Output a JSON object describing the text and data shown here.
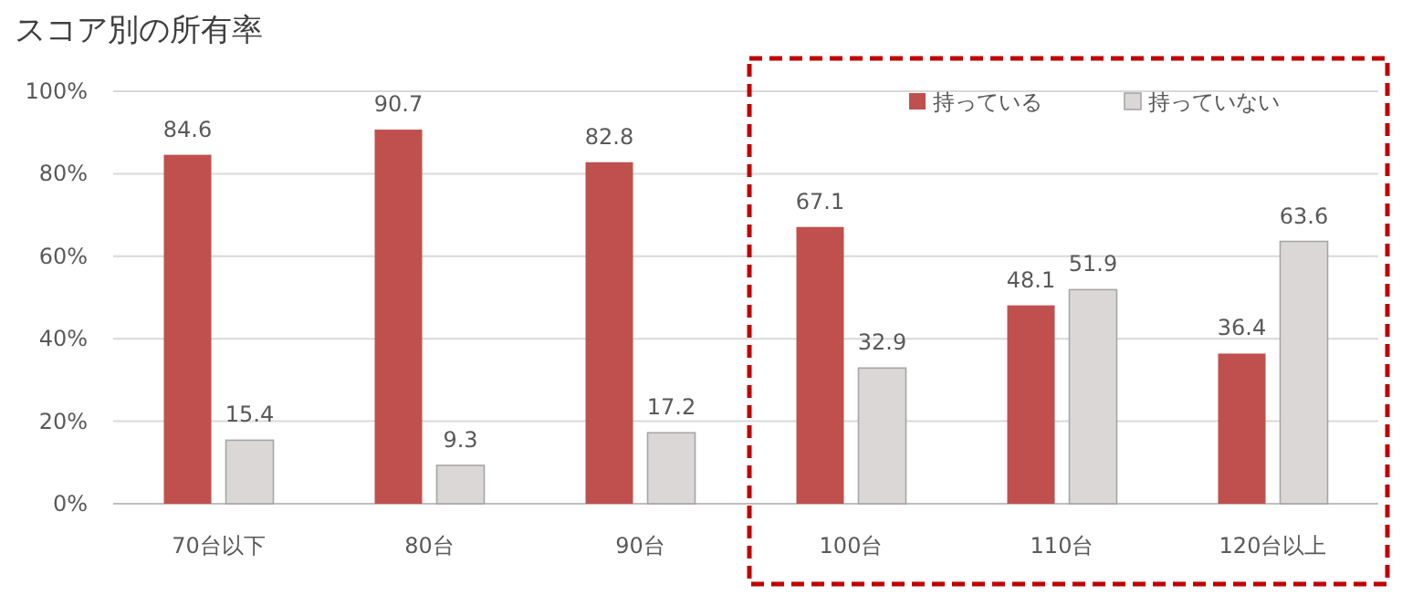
{
  "chart_data": {
    "type": "bar",
    "title": "スコア別の所有率",
    "categories": [
      "70台以下",
      "80台",
      "90台",
      "100台",
      "110台",
      "120台以上"
    ],
    "series": [
      {
        "name": "持っている",
        "color": "#c0504d",
        "values": [
          84.6,
          90.7,
          82.8,
          67.1,
          48.1,
          36.4
        ]
      },
      {
        "name": "持っていない",
        "color": "#dbd7d7",
        "values": [
          15.4,
          9.3,
          17.2,
          32.9,
          51.9,
          63.6
        ]
      }
    ],
    "ylim": [
      0,
      100
    ],
    "yticks": [
      {
        "value": 0,
        "label": "0%"
      },
      {
        "value": 20,
        "label": "20%"
      },
      {
        "value": 40,
        "label": "40%"
      },
      {
        "value": 60,
        "label": "60%"
      },
      {
        "value": 80,
        "label": "80%"
      },
      {
        "value": 100,
        "label": "100%"
      }
    ],
    "grid": "y",
    "legend": "top right",
    "data_labels": true
  }
}
